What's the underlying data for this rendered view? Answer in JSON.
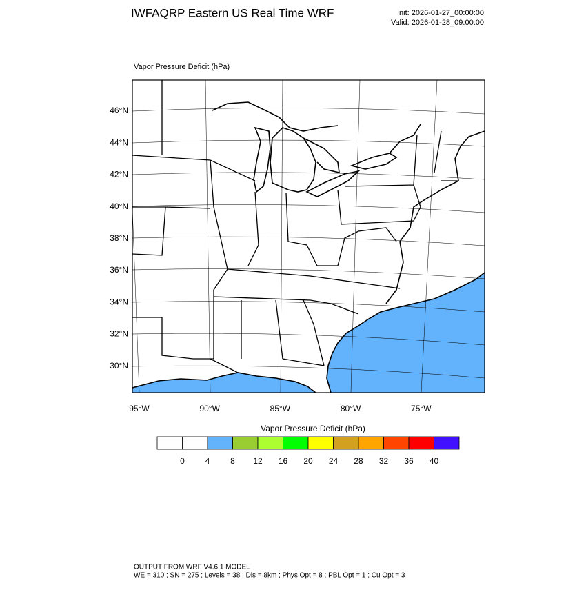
{
  "header": {
    "title": "IWFAQRP Eastern US Real Time WRF",
    "init": "Init: 2026-01-27_00:00:00",
    "valid": "Valid: 2026-01-28_09:00:00"
  },
  "map": {
    "field_label": "Vapor Pressure Deficit   (hPa)",
    "lat_labels": [
      "46°N",
      "44°N",
      "42°N",
      "40°N",
      "38°N",
      "36°N",
      "34°N",
      "32°N",
      "30°N"
    ],
    "lon_labels": [
      "95°W",
      "90°W",
      "85°W",
      "80°W",
      "75°W"
    ]
  },
  "colorbar": {
    "title": "Vapor Pressure Deficit  (hPa)",
    "colors": [
      "#ffffff",
      "#ffffff",
      "#62b2fc",
      "#9acd32",
      "#adff2f",
      "#00ff00",
      "#ffff00",
      "#d4a020",
      "#ffa500",
      "#ff4500",
      "#ff0000",
      "#4010ff"
    ],
    "labels": [
      0,
      4,
      8,
      12,
      16,
      20,
      24,
      28,
      32,
      36,
      40
    ]
  },
  "footer": {
    "line1": "OUTPUT FROM WRF V4.6.1 MODEL",
    "line2": "WE = 310 ; SN = 275 ; Levels = 38 ; Dis = 8km ; Phys Opt = 8 ; PBL Opt = 1 ; Cu Opt = 3"
  }
}
